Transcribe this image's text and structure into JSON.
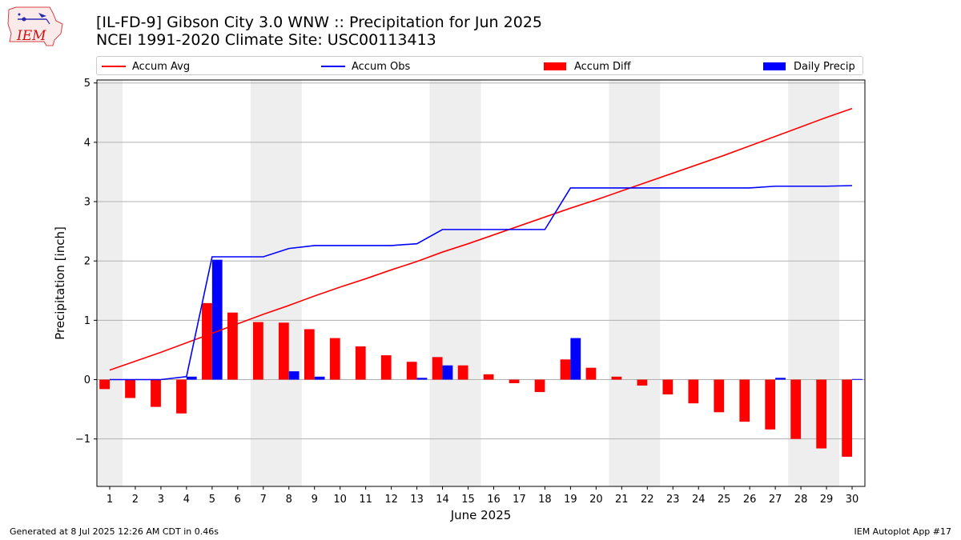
{
  "header": {
    "title_line1": "[IL-FD-9] Gibson City 3.0 WNW :: Precipitation for Jun 2025",
    "title_line2": "NCEI 1991-2020 Climate Site: USC00113413",
    "logo_text": "IEM"
  },
  "legend": [
    {
      "label": "Accum Avg",
      "kind": "line",
      "color": "#ff0000"
    },
    {
      "label": "Accum Obs",
      "kind": "line",
      "color": "#0000ff"
    },
    {
      "label": "Accum Diff",
      "kind": "bar",
      "color": "#ff0000"
    },
    {
      "label": "Daily Precip",
      "kind": "bar",
      "color": "#0000ff"
    }
  ],
  "footer": {
    "left": "Generated at 8 Jul 2025 12:26 AM CDT in 0.46s",
    "right": "IEM Autoplot App #17"
  },
  "chart_data": {
    "type": "bar",
    "title": "[IL-FD-9] Gibson City 3.0 WNW :: Precipitation for Jun 2025",
    "xlabel": "June 2025",
    "ylabel": "Precipitation [inch]",
    "x": [
      1,
      2,
      3,
      4,
      5,
      6,
      7,
      8,
      9,
      10,
      11,
      12,
      13,
      14,
      15,
      16,
      17,
      18,
      19,
      20,
      21,
      22,
      23,
      24,
      25,
      26,
      27,
      28,
      29,
      30
    ],
    "ylim": [
      -1.8,
      5.05
    ],
    "xlim": [
      0.5,
      30.5
    ],
    "yticks": [
      -1,
      0,
      1,
      2,
      3,
      4,
      5
    ],
    "ytick_labels": [
      "−1",
      "0",
      "1",
      "2",
      "3",
      "4",
      "5"
    ],
    "grid": "horizontal",
    "legend_position": "top",
    "weekend_shading": [
      [
        0.5,
        1.5
      ],
      [
        6.5,
        8.5
      ],
      [
        13.5,
        15.5
      ],
      [
        20.5,
        22.5
      ],
      [
        27.5,
        29.5
      ]
    ],
    "shade_color": "#eeeeee",
    "series": [
      {
        "name": "Accum Avg",
        "type": "line",
        "color": "#ff0000",
        "values": [
          0.16,
          0.31,
          0.46,
          0.62,
          0.78,
          0.94,
          1.1,
          1.25,
          1.41,
          1.56,
          1.7,
          1.85,
          1.99,
          2.15,
          2.29,
          2.44,
          2.59,
          2.74,
          2.89,
          3.03,
          3.18,
          3.33,
          3.48,
          3.63,
          3.78,
          3.94,
          4.1,
          4.26,
          4.42,
          4.57
        ]
      },
      {
        "name": "Accum Obs",
        "type": "line",
        "color": "#0000ff",
        "values": [
          0.0,
          0.0,
          0.0,
          0.05,
          2.07,
          2.07,
          2.07,
          2.21,
          2.26,
          2.26,
          2.26,
          2.26,
          2.29,
          2.53,
          2.53,
          2.53,
          2.53,
          2.53,
          3.23,
          3.23,
          3.23,
          3.23,
          3.23,
          3.23,
          3.23,
          3.23,
          3.26,
          3.26,
          3.26,
          3.27
        ]
      },
      {
        "name": "Accum Diff",
        "type": "bar",
        "color": "#ff0000",
        "values": [
          -0.16,
          -0.31,
          -0.46,
          -0.57,
          1.29,
          1.13,
          0.97,
          0.96,
          0.85,
          0.7,
          0.56,
          0.41,
          0.3,
          0.38,
          0.24,
          0.09,
          -0.06,
          -0.21,
          0.34,
          0.2,
          0.05,
          -0.1,
          -0.25,
          -0.4,
          -0.55,
          -0.71,
          -0.84,
          -1.0,
          -1.16,
          -1.3
        ]
      },
      {
        "name": "Daily Precip",
        "type": "bar",
        "color": "#0000ff",
        "values": [
          0.0,
          0.0,
          0.0,
          0.05,
          2.02,
          0.0,
          0.0,
          0.14,
          0.05,
          0.0,
          0.0,
          0.0,
          0.03,
          0.24,
          0.0,
          0.0,
          0.0,
          0.0,
          0.7,
          0.0,
          0.0,
          0.0,
          0.0,
          0.0,
          0.0,
          0.0,
          0.03,
          0.0,
          0.0,
          0.01
        ]
      }
    ]
  }
}
